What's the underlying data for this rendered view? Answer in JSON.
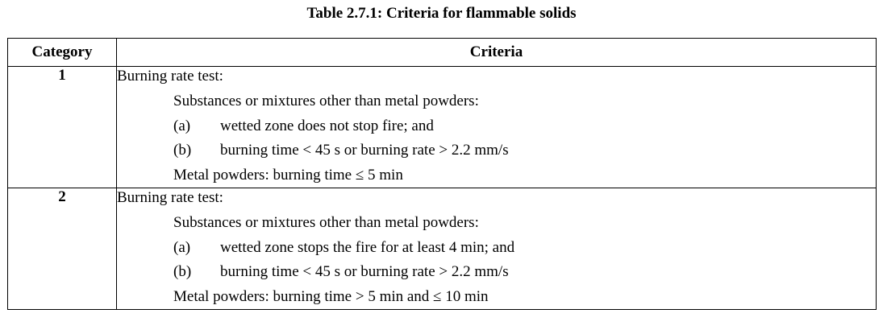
{
  "title": "Table 2.7.1: Criteria for flammable solids",
  "headers": {
    "category": "Category",
    "criteria": "Criteria"
  },
  "rows": [
    {
      "category": "1",
      "test": "Burning rate test:",
      "substances_heading": "Substances or mixtures other than metal powders:",
      "items": [
        {
          "label": "(a)",
          "text": "wetted zone does not stop fire; and"
        },
        {
          "label": "(b)",
          "text": "burning time < 45 s or burning rate > 2.2 mm/s"
        }
      ],
      "metal": "Metal powders: burning time ≤ 5 min"
    },
    {
      "category": "2",
      "test": "Burning rate test:",
      "substances_heading": "Substances or mixtures other than metal powders:",
      "items": [
        {
          "label": "(a)",
          "text": "wetted zone stops the fire for at least 4 min; and"
        },
        {
          "label": "(b)",
          "text": "burning time < 45 s or burning rate > 2.2 mm/s"
        }
      ],
      "metal": "Metal powders: burning time > 5 min and ≤ 10 min"
    }
  ]
}
